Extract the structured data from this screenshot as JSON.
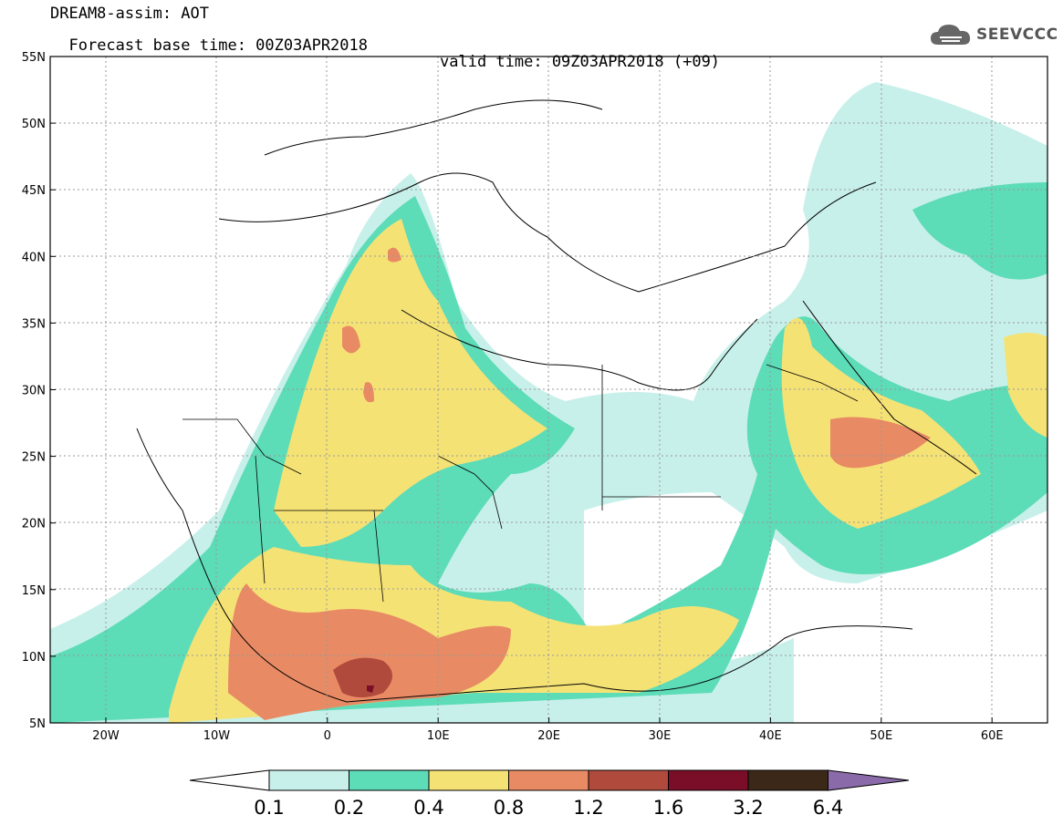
{
  "header": {
    "title_line1": "DREAM8-assim: AOT",
    "base_time": "Forecast base time: 00Z03APR2018",
    "valid_time": "valid time: 09Z03APR2018 (+09)",
    "logo_text": "SEEVCCC"
  },
  "map": {
    "lat_labels": [
      "55N",
      "50N",
      "45N",
      "40N",
      "35N",
      "30N",
      "25N",
      "20N",
      "15N",
      "10N",
      "5N"
    ],
    "lon_labels": [
      "20W",
      "10W",
      "0",
      "10E",
      "20E",
      "30E",
      "40E",
      "50E",
      "60E"
    ],
    "lon_range": [
      -25,
      65
    ],
    "lat_range": [
      5,
      55
    ]
  },
  "colorbar": {
    "labels": [
      "0.1",
      "0.2",
      "0.4",
      "0.8",
      "1.2",
      "1.6",
      "3.2",
      "6.4"
    ],
    "colors": [
      "#ffffff",
      "#c8f0ea",
      "#5ddcb8",
      "#f5e275",
      "#e88a64",
      "#b04a3c",
      "#7a0e28",
      "#3c2818",
      "#8a6aa8"
    ]
  }
}
